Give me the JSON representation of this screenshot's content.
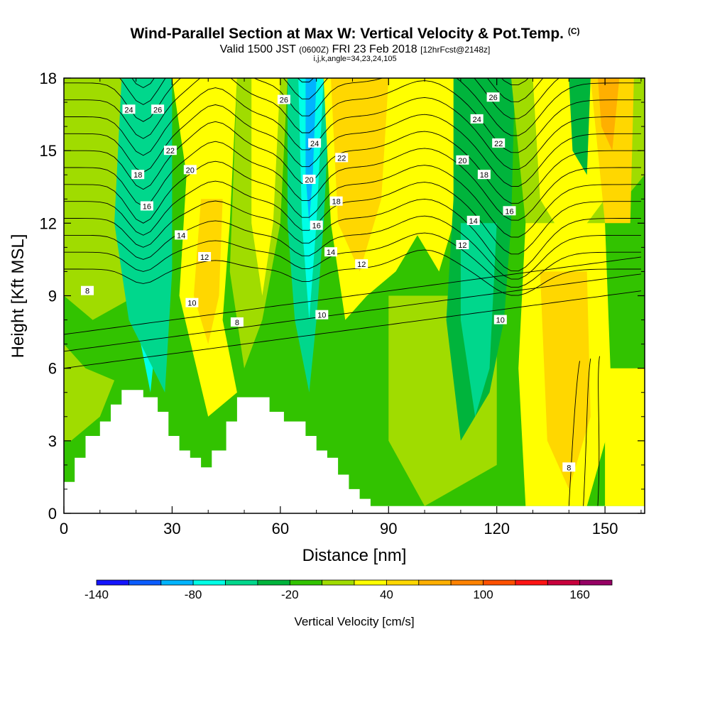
{
  "title": "Wind-Parallel Section at Max W: Vertical Velocity & Pot.Temp.",
  "copyright_mark": "(C)",
  "subtitle_main": "Valid 1500 JST",
  "subtitle_utc": "(0600Z)",
  "subtitle_date": "FRI 23 Feb 2018",
  "subtitle_fcst": "[12hrFcst@2148z]",
  "subtitle2": "i,j,k,angle=34,23,24,105",
  "chart_data": {
    "type": "heatmap",
    "xlabel": "Distance [nm]",
    "ylabel": "Height [Kft MSL]",
    "xlim": [
      0,
      161
    ],
    "ylim": [
      0,
      18
    ],
    "x_ticks": [
      "0",
      "30",
      "60",
      "90",
      "120",
      "150"
    ],
    "y_ticks": [
      "0",
      "3",
      "6",
      "9",
      "12",
      "15",
      "18"
    ],
    "colorbar": {
      "label": "Vertical Velocity [cm/s]",
      "tick_labels": [
        "-140",
        "-80",
        "-20",
        "40",
        "100",
        "160"
      ],
      "levels": [
        -140,
        -120,
        -100,
        -80,
        -60,
        -40,
        -20,
        0,
        20,
        40,
        60,
        80,
        100,
        120,
        140,
        160,
        180
      ],
      "colors": [
        "#1414ff",
        "#0a5cff",
        "#00b4ff",
        "#00ffe6",
        "#00d78c",
        "#00b43c",
        "#32c300",
        "#a0dc00",
        "#ffff00",
        "#ffd700",
        "#ffaf00",
        "#ff8200",
        "#ff5000",
        "#ff1414",
        "#c8003c",
        "#960064",
        "#5a0096"
      ]
    },
    "contour_field": "Potential temperature (contour labels)",
    "contour_labels": [
      {
        "text": "24",
        "x": 18,
        "y": 16.7
      },
      {
        "text": "26",
        "x": 26,
        "y": 16.7
      },
      {
        "text": "22",
        "x": 29.5,
        "y": 15.0
      },
      {
        "text": "20",
        "x": 35,
        "y": 14.2
      },
      {
        "text": "18",
        "x": 20.5,
        "y": 14.0
      },
      {
        "text": "16",
        "x": 23,
        "y": 12.7
      },
      {
        "text": "14",
        "x": 32.5,
        "y": 11.5
      },
      {
        "text": "12",
        "x": 39,
        "y": 10.6
      },
      {
        "text": "10",
        "x": 35.5,
        "y": 8.7
      },
      {
        "text": "8",
        "x": 48,
        "y": 7.9
      },
      {
        "text": "8",
        "x": 6.5,
        "y": 9.2
      },
      {
        "text": "26",
        "x": 61,
        "y": 17.1
      },
      {
        "text": "24",
        "x": 69.5,
        "y": 15.3
      },
      {
        "text": "22",
        "x": 77,
        "y": 14.7
      },
      {
        "text": "20",
        "x": 68,
        "y": 13.8
      },
      {
        "text": "18",
        "x": 75.5,
        "y": 12.9
      },
      {
        "text": "16",
        "x": 70,
        "y": 11.9
      },
      {
        "text": "14",
        "x": 74,
        "y": 10.8
      },
      {
        "text": "12",
        "x": 82.5,
        "y": 10.3
      },
      {
        "text": "10",
        "x": 71.5,
        "y": 8.2
      },
      {
        "text": "26",
        "x": 119,
        "y": 17.2
      },
      {
        "text": "24",
        "x": 114.5,
        "y": 16.3
      },
      {
        "text": "22",
        "x": 120.5,
        "y": 15.3
      },
      {
        "text": "20",
        "x": 110.5,
        "y": 14.6
      },
      {
        "text": "18",
        "x": 116.5,
        "y": 14.0
      },
      {
        "text": "16",
        "x": 123.5,
        "y": 12.5
      },
      {
        "text": "14",
        "x": 113.5,
        "y": 12.1
      },
      {
        "text": "12",
        "x": 110.5,
        "y": 11.1
      },
      {
        "text": "10",
        "x": 121,
        "y": 8.0
      },
      {
        "text": "8",
        "x": 140,
        "y": 1.9
      }
    ],
    "terrain_heights_kft": [
      [
        0,
        1.3
      ],
      [
        3,
        2.3
      ],
      [
        6,
        3.2
      ],
      [
        10,
        3.8
      ],
      [
        13,
        4.5
      ],
      [
        16,
        5.1
      ],
      [
        22,
        4.8
      ],
      [
        26,
        4.2
      ],
      [
        29,
        3.2
      ],
      [
        32,
        2.6
      ],
      [
        35,
        2.3
      ],
      [
        38,
        1.9
      ],
      [
        41,
        2.6
      ],
      [
        45,
        3.8
      ],
      [
        48,
        4.8
      ],
      [
        57,
        4.2
      ],
      [
        61,
        3.8
      ],
      [
        67,
        3.2
      ],
      [
        70,
        2.6
      ],
      [
        73,
        2.3
      ],
      [
        76,
        1.6
      ],
      [
        79,
        1.0
      ],
      [
        82,
        0.6
      ],
      [
        85,
        0.3
      ],
      [
        90,
        0.3
      ],
      [
        161,
        0.3
      ]
    ]
  }
}
